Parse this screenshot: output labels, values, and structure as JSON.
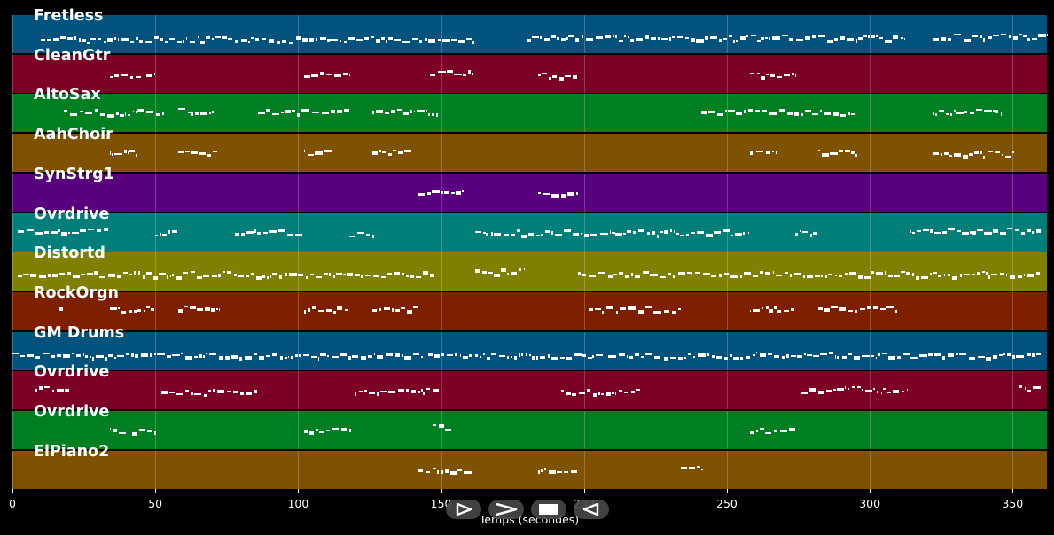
{
  "xaxis": {
    "label": "Temps (secondes)",
    "ticks": [
      "0",
      "50",
      "100",
      "150",
      "200",
      "250",
      "300",
      "350"
    ],
    "tick_values": [
      0,
      50,
      100,
      150,
      200,
      250,
      300,
      350
    ],
    "range": [
      0,
      362
    ]
  },
  "tracks": [
    {
      "name": "Fretless",
      "color": "#02527e"
    },
    {
      "name": "CleanGtr",
      "color": "#7c0026"
    },
    {
      "name": "AltoSax",
      "color": "#007e22"
    },
    {
      "name": "AahChoir",
      "color": "#7e5200"
    },
    {
      "name": "SynStrg1",
      "color": "#58007e"
    },
    {
      "name": "Ovrdrive",
      "color": "#007e7a"
    },
    {
      "name": "Distortd",
      "color": "#7f7f00"
    },
    {
      "name": "RockOrgn",
      "color": "#7e2000"
    },
    {
      "name": "GM Drums",
      "color": "#02527e"
    },
    {
      "name": "Ovrdrive",
      "color": "#7c0026"
    },
    {
      "name": "Ovrdrive",
      "color": "#007e22"
    },
    {
      "name": "ElPiano2",
      "color": "#7e5200"
    }
  ],
  "controls": [
    {
      "name": "play-reverse-button",
      "icon": "triangle-right-outline-icon"
    },
    {
      "name": "play-button",
      "icon": "chevron-right-icon"
    },
    {
      "name": "stop-button",
      "icon": "stop-square-icon"
    },
    {
      "name": "rewind-button",
      "icon": "triangle-left-outline-icon"
    }
  ],
  "chart_data": {
    "type": "piano-roll",
    "xlabel": "Temps (secondes)",
    "xlim": [
      0,
      362
    ],
    "grid": true,
    "tracks": [
      {
        "name": "Fretless",
        "segments": [
          [
            10,
            162,
            0.62
          ],
          [
            180,
            312,
            0.58
          ],
          [
            322,
            362,
            0.55
          ]
        ]
      },
      {
        "name": "CleanGtr",
        "segments": [
          [
            34,
            50,
            0.5
          ],
          [
            102,
            118,
            0.5
          ],
          [
            146,
            161,
            0.47
          ],
          [
            184,
            198,
            0.52
          ],
          [
            258,
            274,
            0.5
          ]
        ]
      },
      {
        "name": "AltoSax",
        "segments": [
          [
            18,
            53,
            0.46
          ],
          [
            58,
            70,
            0.43
          ],
          [
            86,
            118,
            0.45
          ],
          [
            126,
            149,
            0.45
          ],
          [
            241,
            295,
            0.46
          ],
          [
            322,
            346,
            0.45
          ]
        ]
      },
      {
        "name": "AahChoir",
        "segments": [
          [
            34,
            44,
            0.47
          ],
          [
            58,
            72,
            0.47
          ],
          [
            102,
            112,
            0.48
          ],
          [
            126,
            140,
            0.47
          ],
          [
            258,
            268,
            0.47
          ],
          [
            282,
            296,
            0.47
          ],
          [
            322,
            350,
            0.51
          ]
        ]
      },
      {
        "name": "SynStrg1",
        "segments": [
          [
            142,
            158,
            0.5
          ],
          [
            184,
            198,
            0.54
          ]
        ]
      },
      {
        "name": "Ovrdrive",
        "segments": [
          [
            2,
            34,
            0.45
          ],
          [
            50,
            58,
            0.52
          ],
          [
            78,
            102,
            0.49
          ],
          [
            118,
            126,
            0.52
          ],
          [
            162,
            258,
            0.5
          ],
          [
            274,
            282,
            0.52
          ],
          [
            314,
            360,
            0.46
          ]
        ]
      },
      {
        "name": "Distortd",
        "segments": [
          [
            2,
            148,
            0.55
          ],
          [
            162,
            180,
            0.48
          ],
          [
            198,
            360,
            0.55
          ]
        ]
      },
      {
        "name": "RockOrgn",
        "segments": [
          [
            16,
            18,
            0.35
          ],
          [
            34,
            50,
            0.43
          ],
          [
            58,
            74,
            0.42
          ],
          [
            102,
            118,
            0.43
          ],
          [
            126,
            142,
            0.41
          ],
          [
            202,
            234,
            0.43
          ],
          [
            258,
            274,
            0.43
          ],
          [
            282,
            310,
            0.42
          ]
        ]
      },
      {
        "name": "GM Drums",
        "segments": [
          [
            0,
            360,
            0.6
          ]
        ]
      },
      {
        "name": "Ovrdrive",
        "segments": [
          [
            8,
            20,
            0.45
          ],
          [
            52,
            86,
            0.52
          ],
          [
            120,
            150,
            0.5
          ],
          [
            192,
            220,
            0.52
          ],
          [
            276,
            314,
            0.46
          ],
          [
            352,
            360,
            0.41
          ]
        ]
      },
      {
        "name": "Ovrdrive",
        "segments": [
          [
            34,
            50,
            0.5
          ],
          [
            102,
            118,
            0.5
          ],
          [
            147,
            154,
            0.4
          ],
          [
            258,
            274,
            0.5
          ]
        ]
      },
      {
        "name": "ElPiano2",
        "segments": [
          [
            142,
            161,
            0.5
          ],
          [
            184,
            198,
            0.52
          ],
          [
            234,
            242,
            0.46
          ]
        ]
      }
    ]
  }
}
